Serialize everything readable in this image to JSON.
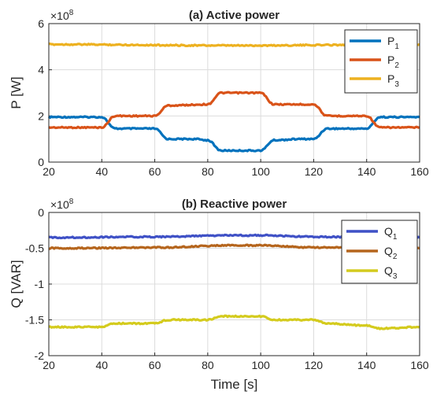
{
  "colors": {
    "blue": "#0072BD",
    "orange": "#D95319",
    "yellow": "#EDB120",
    "q_blue": "#3F51C6",
    "q_brown": "#B5651D",
    "q_yellow": "#D4CB1E",
    "axis": "#262626",
    "grid": "#dcdcdc"
  },
  "chart_data": [
    {
      "type": "line",
      "title": "(a) Active power",
      "xlabel": "",
      "ylabel": "P [W]",
      "exponent_label": "×10",
      "exponent_power": "8",
      "xlim": [
        20,
        160
      ],
      "ylim": [
        0,
        6
      ],
      "x_ticks": [
        "20",
        "40",
        "60",
        "80",
        "100",
        "120",
        "140",
        "160"
      ],
      "y_ticks": [
        "0",
        "2",
        "4",
        "6"
      ],
      "grid": true,
      "legend_position": "top-right",
      "series": [
        {
          "name": "P",
          "sub": "1",
          "color": "#0072BD",
          "points": [
            [
              20,
              1.95
            ],
            [
              40,
              1.95
            ],
            [
              45,
              1.45
            ],
            [
              60,
              1.45
            ],
            [
              65,
              1.0
            ],
            [
              75,
              1.0
            ],
            [
              80,
              0.95
            ],
            [
              85,
              0.5
            ],
            [
              100,
              0.5
            ],
            [
              105,
              0.95
            ],
            [
              115,
              1.0
            ],
            [
              120,
              1.0
            ],
            [
              125,
              1.45
            ],
            [
              140,
              1.45
            ],
            [
              145,
              1.95
            ],
            [
              160,
              1.95
            ]
          ]
        },
        {
          "name": "P",
          "sub": "2",
          "color": "#D95319",
          "points": [
            [
              20,
              1.5
            ],
            [
              40,
              1.5
            ],
            [
              45,
              2.0
            ],
            [
              60,
              2.0
            ],
            [
              65,
              2.45
            ],
            [
              80,
              2.5
            ],
            [
              85,
              3.0
            ],
            [
              100,
              3.0
            ],
            [
              105,
              2.5
            ],
            [
              120,
              2.5
            ],
            [
              125,
              2.0
            ],
            [
              140,
              2.0
            ],
            [
              145,
              1.5
            ],
            [
              160,
              1.5
            ]
          ]
        },
        {
          "name": "P",
          "sub": "3",
          "color": "#EDB120",
          "points": [
            [
              20,
              5.1
            ],
            [
              90,
              5.05
            ],
            [
              160,
              5.1
            ]
          ]
        }
      ]
    },
    {
      "type": "line",
      "title": "(b) Reactive power",
      "xlabel": "Time [s]",
      "ylabel": "Q [VAR]",
      "exponent_label": "×10",
      "exponent_power": "8",
      "xlim": [
        20,
        160
      ],
      "ylim": [
        -2,
        0
      ],
      "x_ticks": [
        "20",
        "40",
        "60",
        "80",
        "100",
        "120",
        "140",
        "160"
      ],
      "y_ticks": [
        "-2",
        "-1.5",
        "-1",
        "-0.5",
        "0"
      ],
      "grid": true,
      "legend_position": "top-right",
      "series": [
        {
          "name": "Q",
          "sub": "1",
          "color": "#3F51C6",
          "points": [
            [
              20,
              -0.35
            ],
            [
              60,
              -0.34
            ],
            [
              90,
              -0.32
            ],
            [
              100,
              -0.32
            ],
            [
              120,
              -0.34
            ],
            [
              160,
              -0.35
            ]
          ]
        },
        {
          "name": "Q",
          "sub": "2",
          "color": "#B5651D",
          "points": [
            [
              20,
              -0.5
            ],
            [
              60,
              -0.49
            ],
            [
              90,
              -0.46
            ],
            [
              100,
              -0.46
            ],
            [
              120,
              -0.49
            ],
            [
              160,
              -0.5
            ]
          ]
        },
        {
          "name": "Q",
          "sub": "3",
          "color": "#D4CB1E",
          "points": [
            [
              20,
              -1.6
            ],
            [
              40,
              -1.6
            ],
            [
              45,
              -1.55
            ],
            [
              60,
              -1.55
            ],
            [
              65,
              -1.5
            ],
            [
              80,
              -1.5
            ],
            [
              85,
              -1.45
            ],
            [
              100,
              -1.45
            ],
            [
              105,
              -1.5
            ],
            [
              120,
              -1.5
            ],
            [
              125,
              -1.55
            ],
            [
              140,
              -1.58
            ],
            [
              145,
              -1.62
            ],
            [
              160,
              -1.6
            ]
          ]
        }
      ]
    }
  ]
}
